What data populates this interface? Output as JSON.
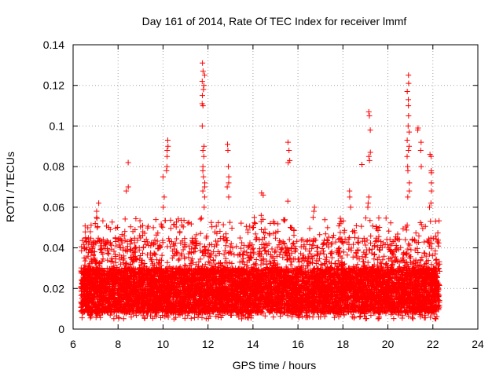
{
  "chart_data": {
    "type": "scatter",
    "title": "Day 161 of 2014, Rate Of TEC Index for receiver lmmf",
    "xlabel": "GPS time / hours",
    "ylabel": "ROTI / TECUs",
    "xlim": [
      6,
      24
    ],
    "ylim": [
      0,
      0.14
    ],
    "xticks": [
      "6",
      "8",
      "10",
      "12",
      "14",
      "16",
      "18",
      "20",
      "22",
      "24"
    ],
    "yticks": [
      "0",
      "0.02",
      "0.04",
      "0.06",
      "0.08",
      "0.1",
      "0.12",
      "0.14"
    ],
    "grid": true,
    "marker": "plus",
    "color": "#ff0000",
    "x_range_data": [
      6.35,
      22.3
    ],
    "baseline_band": [
      0.008,
      0.03
    ],
    "series": [
      {
        "name": "ROTI",
        "peaks": [
          {
            "x": 6.5,
            "values": [
              0.045,
              0.04,
              0.035
            ]
          },
          {
            "x": 7.1,
            "values": [
              0.062,
              0.058,
              0.055,
              0.05
            ]
          },
          {
            "x": 8.4,
            "values": [
              0.082,
              0.07,
              0.068
            ]
          },
          {
            "x": 10.2,
            "values": [
              0.093,
              0.09,
              0.088,
              0.085,
              0.08,
              0.078
            ]
          },
          {
            "x": 10.0,
            "values": [
              0.075,
              0.065,
              0.06
            ]
          },
          {
            "x": 11.8,
            "values": [
              0.131,
              0.127,
              0.125,
              0.122,
              0.12,
              0.118,
              0.115,
              0.111,
              0.11,
              0.1,
              0.09,
              0.088,
              0.085,
              0.08,
              0.078,
              0.075,
              0.072,
              0.07,
              0.068,
              0.065,
              0.06
            ]
          },
          {
            "x": 12.9,
            "values": [
              0.091,
              0.088,
              0.08,
              0.075,
              0.072,
              0.07,
              0.065
            ]
          },
          {
            "x": 14.4,
            "values": [
              0.067,
              0.066,
              0.056,
              0.054
            ]
          },
          {
            "x": 15.6,
            "values": [
              0.092,
              0.088,
              0.083,
              0.082,
              0.063
            ]
          },
          {
            "x": 16.7,
            "values": [
              0.06,
              0.058,
              0.055
            ]
          },
          {
            "x": 18.3,
            "values": [
              0.068,
              0.065,
              0.06
            ]
          },
          {
            "x": 18.9,
            "values": [
              0.081
            ]
          },
          {
            "x": 19.2,
            "values": [
              0.107,
              0.105,
              0.098,
              0.087,
              0.085,
              0.083
            ]
          },
          {
            "x": 19.1,
            "values": [
              0.065,
              0.062,
              0.06
            ]
          },
          {
            "x": 20.9,
            "values": [
              0.125,
              0.121,
              0.117,
              0.113,
              0.11,
              0.105,
              0.1,
              0.097,
              0.093,
              0.09,
              0.088,
              0.085,
              0.08,
              0.078,
              0.072,
              0.068,
              0.065
            ]
          },
          {
            "x": 21.3,
            "values": [
              0.099,
              0.098
            ]
          },
          {
            "x": 21.5,
            "values": [
              0.092,
              0.088,
              0.08
            ]
          },
          {
            "x": 21.9,
            "values": [
              0.086,
              0.085,
              0.078,
              0.077,
              0.072,
              0.068,
              0.062,
              0.06
            ]
          }
        ]
      }
    ]
  }
}
